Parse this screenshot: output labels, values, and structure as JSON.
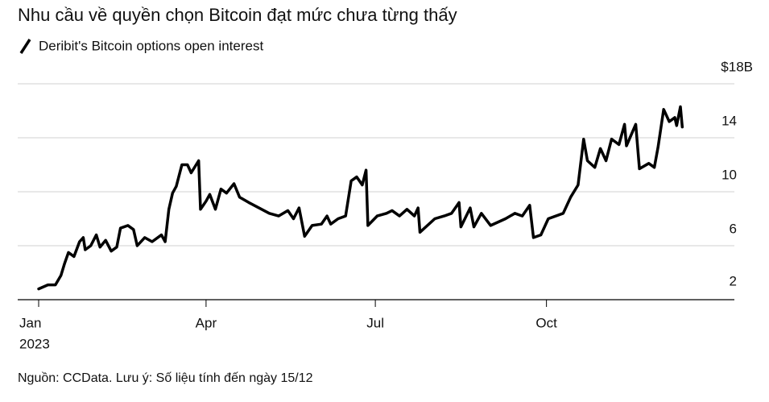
{
  "chart_data": {
    "type": "line",
    "title": "Nhu cầu về quyền chọn Bitcoin đạt mức chưa từng thấy",
    "subtitle": "Deribit's Bitcoin options open interest",
    "source": "Nguồn: CCData. Lưu ý: Số liệu tính đến ngày 15/12",
    "year": "2023",
    "series": [
      {
        "name": "Deribit's Bitcoin options open interest",
        "color": "#000000",
        "x": [
          0,
          5,
          9,
          12,
          14,
          16,
          19,
          22,
          24,
          25,
          28,
          31,
          33,
          36,
          39,
          42,
          44,
          48,
          51,
          53,
          57,
          61,
          66,
          68,
          70,
          72,
          74,
          77,
          80,
          82,
          86,
          87,
          90,
          92,
          95,
          98,
          101,
          105,
          108,
          113,
          124,
          129,
          134,
          137,
          140,
          143,
          147,
          152,
          155,
          157,
          161,
          165,
          168,
          171,
          174,
          176,
          177,
          182,
          187,
          190,
          194,
          198,
          202,
          204,
          205,
          213,
          218,
          222,
          226,
          227,
          232,
          234,
          238,
          243,
          251,
          256,
          260,
          264,
          266,
          270,
          274,
          282,
          286,
          290,
          293,
          295,
          299,
          302,
          305,
          308,
          312,
          315,
          316,
          321,
          323,
          328,
          331,
          333,
          336,
          339,
          342,
          343,
          345,
          346
        ],
        "values": [
          2.8,
          3.1,
          3.1,
          3.8,
          4.7,
          5.5,
          5.2,
          6.3,
          6.6,
          5.7,
          6.0,
          6.8,
          5.9,
          6.4,
          5.6,
          5.9,
          7.3,
          7.5,
          7.2,
          6.0,
          6.6,
          6.3,
          6.8,
          6.3,
          8.7,
          9.9,
          10.4,
          12.0,
          12.0,
          11.4,
          12.3,
          8.7,
          9.3,
          9.8,
          8.7,
          10.2,
          9.9,
          10.6,
          9.6,
          9.2,
          8.4,
          8.2,
          8.6,
          8.0,
          8.8,
          6.7,
          7.5,
          7.6,
          8.2,
          7.6,
          8.0,
          8.2,
          10.8,
          11.1,
          10.5,
          11.6,
          7.5,
          8.2,
          8.4,
          8.6,
          8.2,
          8.7,
          8.2,
          8.8,
          7.0,
          8.0,
          8.2,
          8.4,
          9.2,
          7.4,
          8.8,
          7.4,
          8.4,
          7.5,
          8.0,
          8.4,
          8.2,
          9.0,
          6.6,
          6.8,
          8.0,
          8.4,
          9.6,
          10.5,
          13.9,
          12.3,
          11.8,
          13.2,
          12.3,
          13.9,
          13.5,
          15.0,
          13.4,
          15.0,
          11.7,
          12.1,
          11.8,
          13.3,
          16.1,
          15.2,
          15.5,
          14.9,
          16.3,
          14.8
        ]
      }
    ],
    "xlim": [
      0,
      374
    ],
    "xticks": [
      {
        "value": 0,
        "label": "Jan"
      },
      {
        "value": 90,
        "label": "Apr"
      },
      {
        "value": 181,
        "label": "Jul"
      },
      {
        "value": 273,
        "label": "Oct"
      }
    ],
    "ylim": [
      2,
      18
    ],
    "yticks": [
      2,
      6,
      10,
      14,
      {
        "value": 18,
        "label": "$18B"
      }
    ],
    "grid": true
  }
}
